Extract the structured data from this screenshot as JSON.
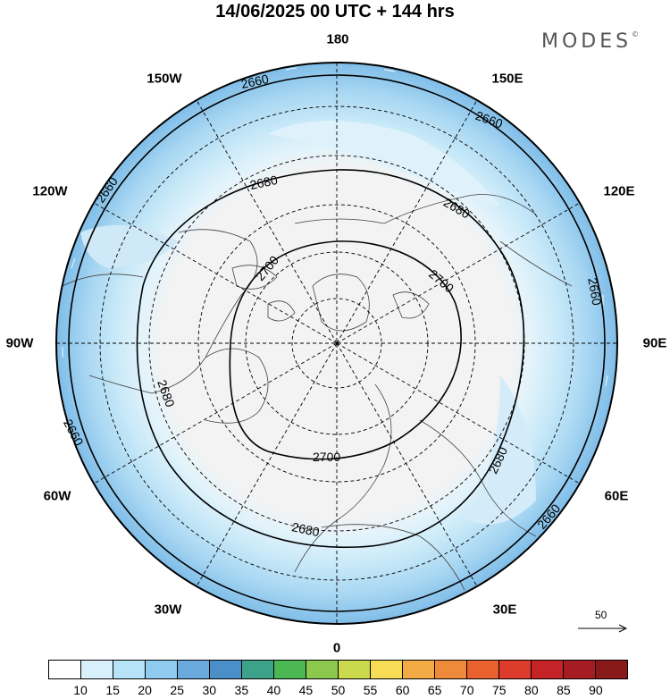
{
  "title": "14/06/2025  00 UTC  + 144 hrs",
  "logo": "MODES",
  "logo_mark": "©",
  "longitude_labels": {
    "top": "180",
    "bottom": "0",
    "left": "90W",
    "right": "90E",
    "w150": "150W",
    "e150": "150E",
    "w120": "120W",
    "e120": "120E",
    "w60": "60W",
    "e60": "60E",
    "w30": "30W",
    "e30": "30E"
  },
  "contour_labels": [
    "2660",
    "2680",
    "2700"
  ],
  "wind_reference": {
    "label": "50",
    "icon": "arrow-right-icon"
  },
  "colorbar": {
    "labels": [
      "10",
      "15",
      "20",
      "25",
      "30",
      "35",
      "40",
      "45",
      "50",
      "55",
      "60",
      "65",
      "70",
      "75",
      "80",
      "85",
      "90"
    ],
    "colors": [
      "#ffffff",
      "#d8f0fc",
      "#b7e3f8",
      "#8ecbee",
      "#6aa9dc",
      "#4b8fc8",
      "#3ea18a",
      "#4cb853",
      "#8dc84e",
      "#cbd94c",
      "#f7dd55",
      "#f3ac45",
      "#ee8a3a",
      "#e9612f",
      "#dd3b2c",
      "#c42327",
      "#a51d22",
      "#8a1a1a"
    ]
  }
}
